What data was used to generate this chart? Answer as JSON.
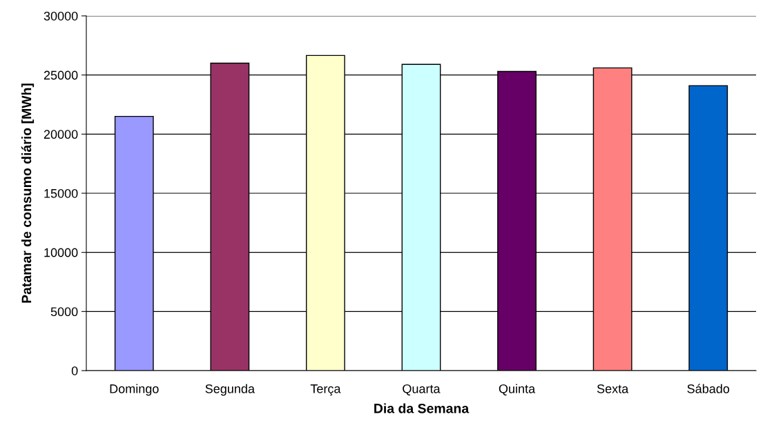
{
  "chart_data": {
    "type": "bar",
    "xlabel": "Dia da Semana",
    "ylabel": "Patamar de consumo diário [MWh]",
    "categories": [
      "Domingo",
      "Segunda",
      "Terça",
      "Quarta",
      "Quinta",
      "Sexta",
      "Sábado"
    ],
    "values": [
      21500,
      26000,
      26650,
      25900,
      25300,
      25600,
      24100
    ],
    "colors": [
      "#9999ff",
      "#993366",
      "#ffffcc",
      "#ccffff",
      "#660066",
      "#ff8080",
      "#0066cc"
    ],
    "ylim": [
      0,
      30000
    ],
    "yticks": [
      0,
      5000,
      10000,
      15000,
      20000,
      25000,
      30000
    ],
    "grid": "y"
  }
}
